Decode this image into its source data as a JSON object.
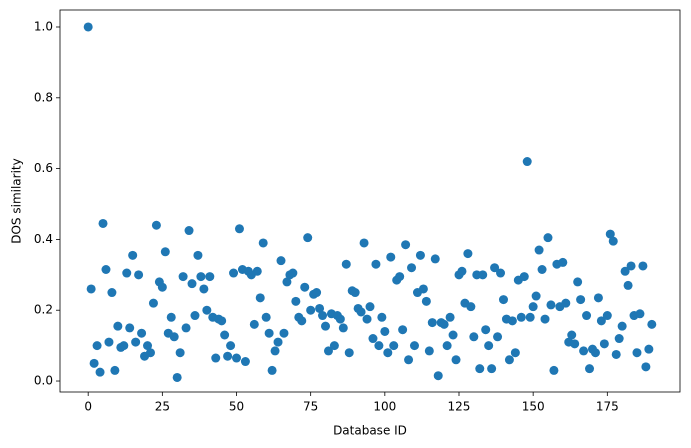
{
  "chart_data": {
    "type": "scatter",
    "xlabel": "Database ID",
    "ylabel": "DOS similarity",
    "color": "#1f77b4",
    "x": [
      0,
      1,
      2,
      3,
      4,
      5,
      6,
      7,
      8,
      9,
      10,
      11,
      12,
      13,
      14,
      15,
      16,
      17,
      18,
      19,
      20,
      21,
      22,
      23,
      24,
      25,
      26,
      27,
      28,
      29,
      30,
      31,
      32,
      33,
      34,
      35,
      36,
      37,
      38,
      39,
      40,
      41,
      42,
      43,
      44,
      45,
      46,
      47,
      48,
      49,
      50,
      51,
      52,
      53,
      54,
      55,
      56,
      57,
      58,
      59,
      60,
      61,
      62,
      63,
      64,
      65,
      66,
      67,
      68,
      69,
      70,
      71,
      72,
      73,
      74,
      75,
      76,
      77,
      78,
      79,
      80,
      81,
      82,
      83,
      84,
      85,
      86,
      87,
      88,
      89,
      90,
      91,
      92,
      93,
      94,
      95,
      96,
      97,
      98,
      99,
      100,
      101,
      102,
      103,
      104,
      105,
      106,
      107,
      108,
      109,
      110,
      111,
      112,
      113,
      114,
      115,
      116,
      117,
      118,
      119,
      120,
      121,
      122,
      123,
      124,
      125,
      126,
      127,
      128,
      129,
      130,
      131,
      132,
      133,
      134,
      135,
      136,
      137,
      138,
      139,
      140,
      141,
      142,
      143,
      144,
      145,
      146,
      147,
      148,
      149,
      150,
      151,
      152,
      153,
      154,
      155,
      156,
      157,
      158,
      159,
      160,
      161,
      162,
      163,
      164,
      165,
      166,
      167,
      168,
      169,
      170,
      171,
      172,
      173,
      174,
      175,
      176,
      177,
      178,
      179,
      180,
      181,
      182,
      183,
      184,
      185,
      186,
      187,
      188,
      189,
      190
    ],
    "values": [
      1.0,
      0.26,
      0.05,
      0.1,
      0.025,
      0.445,
      0.315,
      0.11,
      0.25,
      0.03,
      0.155,
      0.095,
      0.1,
      0.305,
      0.15,
      0.355,
      0.11,
      0.3,
      0.135,
      0.07,
      0.1,
      0.08,
      0.22,
      0.44,
      0.28,
      0.265,
      0.365,
      0.135,
      0.18,
      0.125,
      0.01,
      0.08,
      0.295,
      0.15,
      0.425,
      0.275,
      0.185,
      0.355,
      0.295,
      0.26,
      0.2,
      0.295,
      0.18,
      0.065,
      0.175,
      0.17,
      0.13,
      0.07,
      0.1,
      0.305,
      0.065,
      0.43,
      0.315,
      0.055,
      0.31,
      0.3,
      0.16,
      0.31,
      0.235,
      0.39,
      0.18,
      0.135,
      0.03,
      0.085,
      0.11,
      0.34,
      0.135,
      0.28,
      0.3,
      0.305,
      0.225,
      0.18,
      0.17,
      0.265,
      0.405,
      0.2,
      0.245,
      0.25,
      0.205,
      0.185,
      0.155,
      0.085,
      0.19,
      0.1,
      0.185,
      0.175,
      0.15,
      0.33,
      0.08,
      0.255,
      0.25,
      0.205,
      0.195,
      0.39,
      0.175,
      0.21,
      0.12,
      0.33,
      0.1,
      0.18,
      0.14,
      0.08,
      0.35,
      0.1,
      0.285,
      0.295,
      0.145,
      0.385,
      0.06,
      0.32,
      0.1,
      0.25,
      0.355,
      0.26,
      0.225,
      0.085,
      0.165,
      0.345,
      0.015,
      0.165,
      0.16,
      0.1,
      0.18,
      0.13,
      0.06,
      0.3,
      0.31,
      0.22,
      0.36,
      0.21,
      0.125,
      0.3,
      0.035,
      0.3,
      0.145,
      0.1,
      0.035,
      0.32,
      0.125,
      0.305,
      0.23,
      0.175,
      0.06,
      0.17,
      0.08,
      0.285,
      0.18,
      0.295,
      0.62,
      0.18,
      0.21,
      0.24,
      0.37,
      0.315,
      0.175,
      0.405,
      0.215,
      0.03,
      0.33,
      0.21,
      0.335,
      0.22,
      0.11,
      0.13,
      0.105,
      0.28,
      0.23,
      0.085,
      0.185,
      0.035,
      0.09,
      0.08,
      0.235,
      0.17,
      0.105,
      0.185,
      0.415,
      0.395,
      0.075,
      0.12,
      0.155,
      0.31,
      0.27,
      0.325,
      0.185,
      0.08,
      0.19,
      0.325,
      0.04,
      0.09,
      0.16
    ],
    "xlim": [
      -9.5,
      199.5
    ],
    "xticks": [
      0,
      25,
      50,
      75,
      100,
      125,
      150,
      175
    ],
    "ylim": [
      -0.031,
      1.048
    ],
    "yticks": [
      {
        "value": 0,
        "label": "0.0"
      },
      0.2,
      0.4,
      0.6,
      0.8,
      {
        "value": 1,
        "label": "1.0"
      }
    ]
  }
}
